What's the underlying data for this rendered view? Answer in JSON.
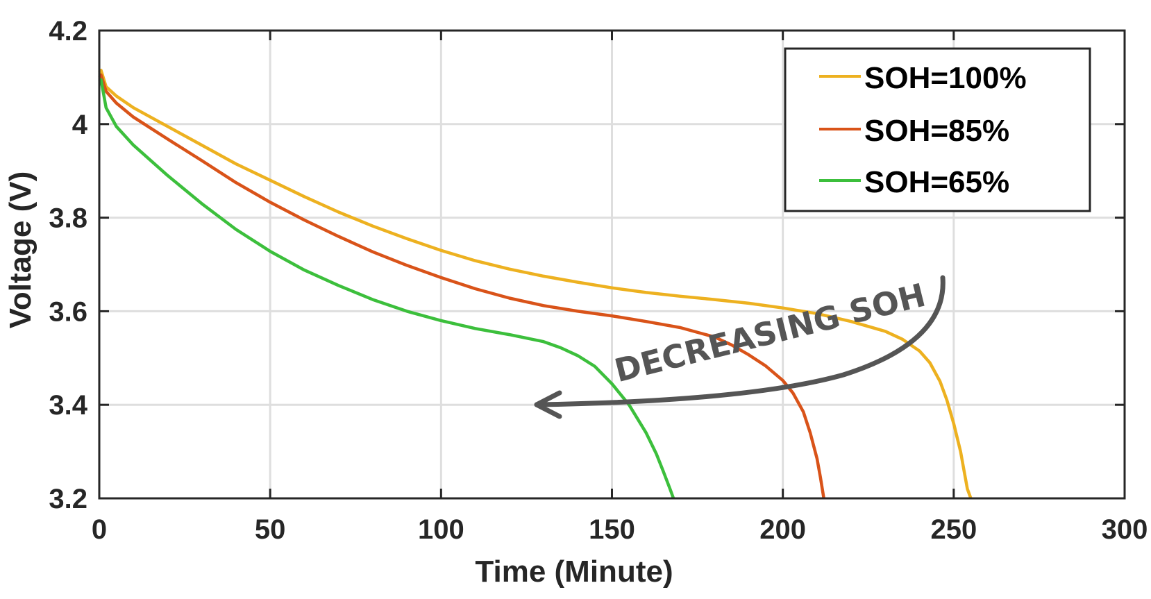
{
  "chart_data": {
    "type": "line",
    "title": "",
    "xlabel": "Time (Minute)",
    "ylabel": "Voltage (V)",
    "xlim": [
      0,
      300
    ],
    "ylim": [
      3.2,
      4.2
    ],
    "x_ticks": [
      0,
      50,
      100,
      150,
      200,
      250,
      300
    ],
    "y_ticks": [
      3.2,
      3.4,
      3.6,
      3.8,
      4.0,
      4.2
    ],
    "x_tick_labels": [
      "0",
      "50",
      "100",
      "150",
      "200",
      "250",
      "300"
    ],
    "y_tick_labels": [
      "3.2",
      "3.4",
      "3.6",
      "3.8",
      "4",
      "4.2"
    ],
    "grid": true,
    "legend_position": "top-right",
    "series": [
      {
        "name": "SOH=100%",
        "color": "#EDB120",
        "points": [
          [
            0,
            4.11
          ],
          [
            0.5,
            4.115
          ],
          [
            2,
            4.08
          ],
          [
            5,
            4.06
          ],
          [
            10,
            4.035
          ],
          [
            20,
            3.995
          ],
          [
            30,
            3.955
          ],
          [
            40,
            3.915
          ],
          [
            50,
            3.88
          ],
          [
            60,
            3.845
          ],
          [
            70,
            3.812
          ],
          [
            80,
            3.782
          ],
          [
            90,
            3.755
          ],
          [
            100,
            3.73
          ],
          [
            110,
            3.708
          ],
          [
            120,
            3.69
          ],
          [
            130,
            3.675
          ],
          [
            140,
            3.662
          ],
          [
            150,
            3.65
          ],
          [
            160,
            3.64
          ],
          [
            170,
            3.632
          ],
          [
            180,
            3.625
          ],
          [
            190,
            3.617
          ],
          [
            200,
            3.607
          ],
          [
            210,
            3.595
          ],
          [
            220,
            3.578
          ],
          [
            230,
            3.557
          ],
          [
            235,
            3.54
          ],
          [
            240,
            3.515
          ],
          [
            243,
            3.49
          ],
          [
            246,
            3.45
          ],
          [
            248,
            3.41
          ],
          [
            250,
            3.36
          ],
          [
            252,
            3.3
          ],
          [
            253,
            3.26
          ],
          [
            254,
            3.22
          ],
          [
            255,
            3.2
          ]
        ]
      },
      {
        "name": "SOH=85%",
        "color": "#D95319",
        "points": [
          [
            0,
            4.1
          ],
          [
            0.5,
            4.105
          ],
          [
            2,
            4.07
          ],
          [
            5,
            4.045
          ],
          [
            10,
            4.015
          ],
          [
            20,
            3.968
          ],
          [
            30,
            3.922
          ],
          [
            40,
            3.875
          ],
          [
            50,
            3.833
          ],
          [
            60,
            3.795
          ],
          [
            70,
            3.76
          ],
          [
            80,
            3.727
          ],
          [
            90,
            3.698
          ],
          [
            100,
            3.672
          ],
          [
            110,
            3.648
          ],
          [
            120,
            3.628
          ],
          [
            130,
            3.612
          ],
          [
            140,
            3.6
          ],
          [
            150,
            3.59
          ],
          [
            160,
            3.578
          ],
          [
            170,
            3.565
          ],
          [
            180,
            3.545
          ],
          [
            185,
            3.528
          ],
          [
            190,
            3.507
          ],
          [
            195,
            3.483
          ],
          [
            200,
            3.452
          ],
          [
            203,
            3.425
          ],
          [
            206,
            3.385
          ],
          [
            208,
            3.34
          ],
          [
            210,
            3.285
          ],
          [
            211,
            3.245
          ],
          [
            212,
            3.2
          ]
        ]
      },
      {
        "name": "SOH=65%",
        "color": "#3CBF3C",
        "points": [
          [
            0,
            4.09
          ],
          [
            0.5,
            4.095
          ],
          [
            2,
            4.035
          ],
          [
            5,
            3.995
          ],
          [
            10,
            3.955
          ],
          [
            20,
            3.89
          ],
          [
            30,
            3.83
          ],
          [
            40,
            3.775
          ],
          [
            50,
            3.728
          ],
          [
            60,
            3.688
          ],
          [
            70,
            3.655
          ],
          [
            80,
            3.625
          ],
          [
            90,
            3.6
          ],
          [
            100,
            3.58
          ],
          [
            110,
            3.563
          ],
          [
            120,
            3.55
          ],
          [
            130,
            3.535
          ],
          [
            135,
            3.522
          ],
          [
            140,
            3.505
          ],
          [
            145,
            3.482
          ],
          [
            150,
            3.445
          ],
          [
            155,
            3.4
          ],
          [
            160,
            3.34
          ],
          [
            163,
            3.295
          ],
          [
            165,
            3.258
          ],
          [
            167,
            3.22
          ],
          [
            168,
            3.2
          ]
        ]
      }
    ],
    "annotation": {
      "text": "DECREASING SOH",
      "color": "#555555",
      "arrow_direction": "toward lower time (from SOH=100% curve end toward SOH=65% curve)"
    }
  }
}
